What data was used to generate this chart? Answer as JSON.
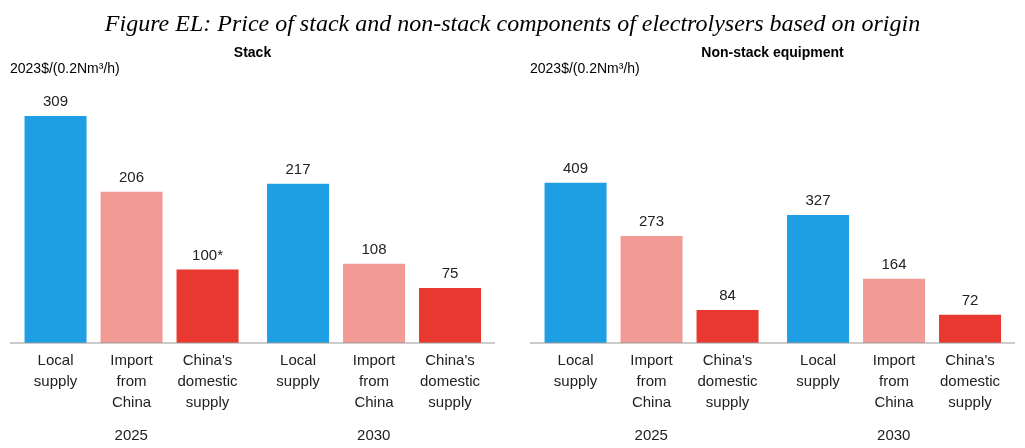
{
  "chart_data": [
    {
      "type": "bar",
      "title": "Figure EL: Price of stack and non-stack components of electrolysers based on origin",
      "subtitle": "Stack",
      "ylabel": "2023$/(0.2Nm³/h)",
      "categories": [
        "2025",
        "2030"
      ],
      "data_labels": true,
      "legend": false,
      "grid": false,
      "series": [
        {
          "name": "Local supply",
          "color": "#1e9ee3",
          "values": [
            309,
            217
          ]
        },
        {
          "name": "Import from China",
          "color": "#f29a94",
          "values": [
            206,
            108
          ]
        },
        {
          "name": "China's domestic supply",
          "color": "#e8382f",
          "values": [
            100,
            75
          ],
          "value_labels": [
            "100*",
            "75"
          ]
        }
      ]
    },
    {
      "type": "bar",
      "subtitle": "Non-stack equipment",
      "ylabel": "2023$/(0.2Nm³/h)",
      "categories": [
        "2025",
        "2030"
      ],
      "data_labels": true,
      "legend": false,
      "grid": false,
      "series": [
        {
          "name": "Local supply",
          "color": "#1e9ee3",
          "values": [
            409,
            327
          ]
        },
        {
          "name": "Import from China",
          "color": "#f29a94",
          "values": [
            273,
            164
          ]
        },
        {
          "name": "China's domestic supply",
          "color": "#e8382f",
          "values": [
            84,
            72
          ]
        }
      ]
    }
  ]
}
